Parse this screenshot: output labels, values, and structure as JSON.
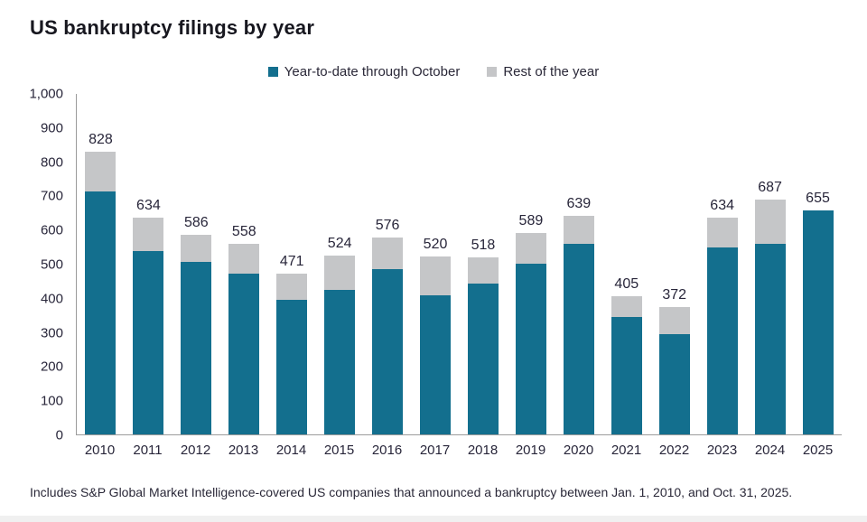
{
  "title": "US bankruptcy filings by year",
  "legend": {
    "items": [
      {
        "label": "Year-to-date through October",
        "color": "#136f8e"
      },
      {
        "label": "Rest of the year",
        "color": "#c5c6c8"
      }
    ]
  },
  "chart_data": {
    "type": "bar",
    "stacked": true,
    "title": "US bankruptcy filings by year",
    "categories": [
      "2010",
      "2011",
      "2012",
      "2013",
      "2014",
      "2015",
      "2016",
      "2017",
      "2018",
      "2019",
      "2020",
      "2021",
      "2022",
      "2023",
      "2024",
      "2025"
    ],
    "series": [
      {
        "name": "Year-to-date through October",
        "color": "#136f8e",
        "values": [
          711,
          536,
          506,
          472,
          393,
          424,
          483,
          407,
          442,
          499,
          558,
          344,
          293,
          548,
          558,
          655
        ]
      },
      {
        "name": "Rest of the year",
        "color": "#c5c6c8",
        "values": [
          117,
          98,
          80,
          86,
          78,
          100,
          93,
          113,
          76,
          90,
          81,
          61,
          79,
          86,
          129,
          0
        ]
      }
    ],
    "totals": [
      828,
      634,
      586,
      558,
      471,
      524,
      576,
      520,
      518,
      589,
      639,
      405,
      372,
      634,
      687,
      655
    ],
    "ylim": [
      0,
      1000
    ],
    "ytick_interval": 100,
    "ytick_labels": [
      "1,000",
      "900",
      "800",
      "700",
      "600",
      "500",
      "400",
      "300",
      "200",
      "100",
      "0"
    ],
    "grid": false,
    "legend_position": "top",
    "xlabel": "",
    "ylabel": ""
  },
  "footnote": "Includes S&P Global Market Intelligence-covered US companies that announced a bankruptcy between Jan. 1, 2010, and Oct. 31, 2025."
}
